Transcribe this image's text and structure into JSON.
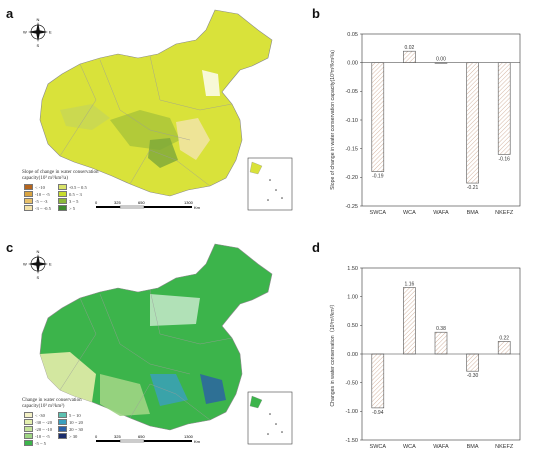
{
  "panels": {
    "a": "a",
    "b": "b",
    "c": "c",
    "d": "d"
  },
  "compass": {
    "n": "N",
    "s": "S",
    "e": "E",
    "w": "W"
  },
  "scalebar": {
    "ticks": [
      "0",
      "325",
      "650",
      "1300"
    ],
    "unit": "Km"
  },
  "map_a": {
    "legend_title_1": "Slope of change in water conservation",
    "legend_title_2": "capacity(10³ m³/km²/a)",
    "legend": [
      {
        "label": "< -10",
        "color": "#b5651d"
      },
      {
        "label": "-10 ~ -5",
        "color": "#d9a441"
      },
      {
        "label": "-5 ~ -3",
        "color": "#e8c16a"
      },
      {
        "label": "-3 ~ -0.5",
        "color": "#f3e2a9"
      },
      {
        "label": "-0.5 ~ 0.5",
        "color": "#d9e36a"
      },
      {
        "label": "0.5 ~ 3",
        "color": "#c7dc2e"
      },
      {
        "label": "3 ~ 5",
        "color": "#8cb83a"
      },
      {
        "label": "> 5",
        "color": "#3f8a2e"
      }
    ]
  },
  "map_c": {
    "legend_title_1": "Change in water conservation",
    "legend_title_2": "capacity(10³ m³/km²)",
    "legend": [
      {
        "label": "< -30",
        "color": "#f4f1c6"
      },
      {
        "label": "-30 ~ -20",
        "color": "#e4efb0"
      },
      {
        "label": "-20 ~ -10",
        "color": "#c5e39a"
      },
      {
        "label": "-10 ~ -5",
        "color": "#9fd584"
      },
      {
        "label": "-5 ~ 5",
        "color": "#3cb44b"
      },
      {
        "label": "5 ~ 10",
        "color": "#5cc0b0"
      },
      {
        "label": "10 ~ 20",
        "color": "#3a9fc0"
      },
      {
        "label": "20 ~ 30",
        "color": "#2b5fa8"
      },
      {
        "label": "> 30",
        "color": "#1a2c6b"
      }
    ]
  },
  "chart_data": [
    {
      "type": "bar",
      "categories": [
        "SWCA",
        "WCA",
        "WAFA",
        "BMA",
        "NKEFZ"
      ],
      "values": [
        -0.19,
        0.02,
        0.0,
        -0.21,
        -0.16
      ],
      "value_labels": [
        "-0.19",
        "0.02",
        "0.00",
        "-0.21",
        "-0.16"
      ],
      "ylabel": "Slope of change in water conservation capacity(10³m³/km²/a)",
      "ylim": [
        -0.25,
        0.05
      ],
      "yticks": [
        "0.05",
        "0.00",
        "-0.05",
        "-0.10",
        "-0.15",
        "-0.20",
        "-0.25"
      ]
    },
    {
      "type": "bar",
      "categories": [
        "SWCA",
        "WCA",
        "WAFA",
        "BMA",
        "NKEFZ"
      ],
      "values": [
        -0.94,
        1.16,
        0.38,
        -0.3,
        0.22
      ],
      "value_labels": [
        "-0.94",
        "1.16",
        "0.38",
        "-0.30",
        "0.22"
      ],
      "ylabel": "Changes in water conservation（10³m³/km²）",
      "ylim": [
        -1.5,
        1.5
      ],
      "yticks": [
        "1.50",
        "1.00",
        "0.50",
        "0.00",
        "-0.50",
        "-1.00",
        "-1.50"
      ]
    }
  ]
}
